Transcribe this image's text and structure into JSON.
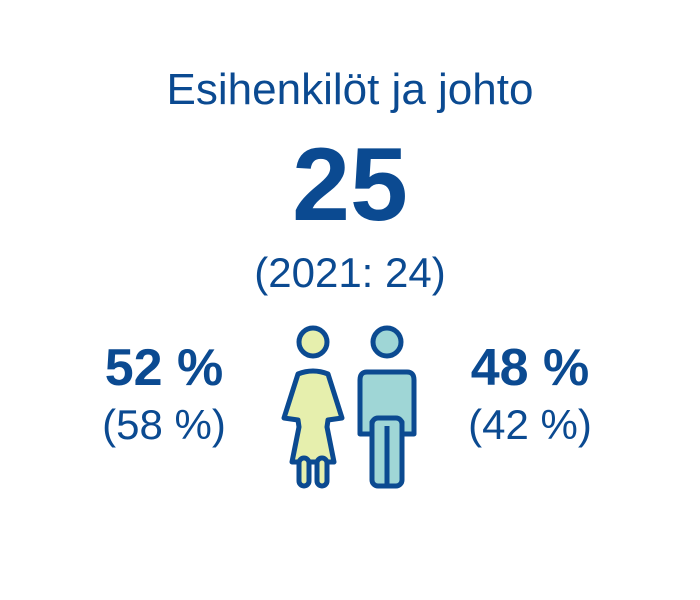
{
  "title": "Esihenkilöt ja johto",
  "total": "25",
  "total_previous": "(2021: 24)",
  "female": {
    "percent": "52 %",
    "previous": "(58 %)",
    "icon": "female-person-icon",
    "fill_color": "#e6efad"
  },
  "male": {
    "percent": "48 %",
    "previous": "(42 %)",
    "icon": "male-person-icon",
    "fill_color": "#9fd6d6"
  },
  "colors": {
    "text": "#0b4a91",
    "outline": "#0b4a91"
  }
}
